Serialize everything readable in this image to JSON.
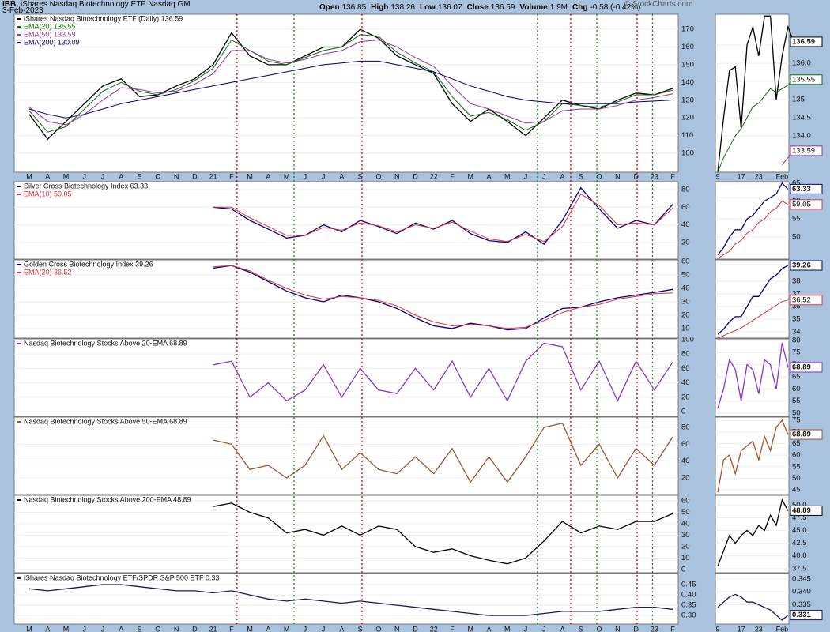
{
  "header": {
    "symbol": "IBB",
    "name": "iShares Nasdaq Biotechnology ETF Nasdaq GM",
    "date": "3-Feb-2023",
    "quote": [
      {
        "label": "Open",
        "value": "136.85"
      },
      {
        "label": "High",
        "value": "138.26"
      },
      {
        "label": "Low",
        "value": "136.07"
      },
      {
        "label": "Close",
        "value": "136.59"
      },
      {
        "label": "Volume",
        "value": "1.9M"
      },
      {
        "label": "Chg",
        "value": "-0.58 (-0.42%)"
      }
    ],
    "credit": "© StockCharts.com"
  },
  "signals": [
    {
      "x": 11.3,
      "color": "#e00000"
    },
    {
      "x": 18.1,
      "color": "#e00000"
    },
    {
      "x": 29.45,
      "color": "#e00000"
    },
    {
      "x": 33.06,
      "color": "#e00000"
    },
    {
      "x": 14.4,
      "color": "#1a8a1a"
    },
    {
      "x": 27.64,
      "color": "#1a8a1a"
    },
    {
      "x": 30.87,
      "color": "#1a8a1a"
    },
    {
      "x": 33.9,
      "color": "#1a8a1a"
    }
  ],
  "chart_data": [
    {
      "type": "line",
      "categories": [
        "M",
        "A",
        "M",
        "J",
        "J",
        "A",
        "S",
        "O",
        "N",
        "D",
        "21",
        "F",
        "M",
        "A",
        "M",
        "J",
        "J",
        "A",
        "S",
        "O",
        "N",
        "D",
        "22",
        "F",
        "M",
        "A",
        "M",
        "J",
        "J",
        "A",
        "S",
        "O",
        "N",
        "D",
        "23",
        "F"
      ],
      "ylim": [
        89.3,
        178.5
      ],
      "yticks": [
        100,
        110,
        120,
        130,
        140,
        150,
        160,
        170
      ],
      "series": [
        {
          "name": "iShares Nasdaq Biotechnology ETF (Daily) 136.59",
          "color": "#000000",
          "values": [
            122,
            108,
            118,
            128,
            138,
            142,
            132,
            133,
            138,
            142,
            150,
            168,
            155,
            150,
            150,
            155,
            160,
            160,
            170,
            165,
            155,
            150,
            145,
            128,
            118,
            125,
            118,
            110,
            120,
            130,
            127,
            125,
            130,
            134,
            133,
            136.6
          ]
        },
        {
          "name": "EMA(20) 135.55",
          "color": "#0a6b0a",
          "values": [
            124,
            112,
            115,
            125,
            135,
            140,
            135,
            133,
            136,
            141,
            148,
            164,
            158,
            152,
            150,
            154,
            158,
            160,
            167,
            166,
            157,
            151,
            146,
            132,
            121,
            123,
            119,
            113,
            118,
            128,
            127,
            126,
            129,
            133,
            133,
            135.6
          ]
        },
        {
          "name": "EMA(50) 133.59",
          "color": "#993399",
          "values": [
            126,
            118,
            116,
            122,
            130,
            137,
            136,
            134,
            135,
            139,
            145,
            158,
            158,
            153,
            151,
            153,
            156,
            158,
            163,
            164,
            160,
            154,
            149,
            138,
            128,
            125,
            121,
            117,
            118,
            124,
            125,
            125,
            127,
            130,
            131.5,
            133.6
          ]
        },
        {
          "name": "EMA(200) 130.09",
          "color": "#000066",
          "values": [
            125,
            122,
            120,
            122,
            125,
            128,
            130,
            132,
            134,
            136,
            138,
            140,
            142,
            144,
            146,
            148,
            150,
            151,
            152,
            152,
            150,
            148,
            146,
            142,
            138,
            135,
            132,
            130,
            129,
            128,
            128,
            128,
            128,
            129,
            129.5,
            130.1
          ]
        }
      ],
      "inset": {
        "categories": [
          "9",
          null,
          null,
          null,
          "17",
          null,
          null,
          "23",
          null,
          null,
          null,
          "Feb",
          null,
          null
        ],
        "ylim": [
          133.0,
          137.35
        ],
        "yticks": [
          {
            "value": 134,
            "label": "134.0"
          },
          134.5,
          135,
          135.5,
          {
            "value": 136,
            "label": "136.0"
          },
          136.5
        ],
        "series": [
          {
            "color": "#000000",
            "values": [
              133.0,
              134.5,
              135.8,
              135.9,
              134.2,
              136.5,
              137.0,
              136.2,
              137.3,
              137.3,
              135.0,
              136.2,
              137.0,
              136.59
            ]
          },
          {
            "color": "#0a6b0a",
            "values": [
              133.0,
              133.4,
              133.7,
              134.0,
              134.2,
              134.5,
              134.8,
              134.9,
              135.1,
              135.3,
              135.2,
              135.3,
              135.4,
              135.55
            ]
          },
          {
            "color": "#993399",
            "values": [
              null,
              null,
              null,
              null,
              null,
              null,
              null,
              null,
              null,
              null,
              null,
              133.2,
              133.4,
              133.59
            ]
          }
        ]
      }
    },
    {
      "type": "line",
      "ylim": [
        1,
        89
      ],
      "yticks": [
        20,
        40,
        60,
        80
      ],
      "series": [
        {
          "name": "Silver Cross Biotechnology Index 63.33",
          "color": "#000080",
          "values": [
            null,
            null,
            null,
            null,
            null,
            null,
            null,
            null,
            null,
            null,
            60,
            58,
            45,
            35,
            25,
            28,
            40,
            32,
            45,
            38,
            30,
            42,
            35,
            45,
            30,
            22,
            20,
            32,
            18,
            45,
            82,
            58,
            36,
            45,
            40,
            63.33
          ]
        },
        {
          "name": "EMA(10) 59.05",
          "color": "#e0303a",
          "values": [
            null,
            null,
            null,
            null,
            null,
            null,
            null,
            null,
            null,
            null,
            60,
            60,
            48,
            38,
            28,
            28,
            37,
            34,
            42,
            39,
            32,
            40,
            36,
            43,
            33,
            24,
            21,
            29,
            21,
            38,
            75,
            62,
            40,
            42,
            40,
            59.05
          ]
        }
      ],
      "inset": {
        "ylim": [
          43.8,
          65.4
        ],
        "yticks": [
          50,
          55,
          60,
          65
        ],
        "series": [
          {
            "color": "#000080",
            "values": [
              45,
              47,
              50,
              52,
              52,
              55,
              56,
              58,
              60,
              61,
              62,
              65,
              63.33
            ]
          },
          {
            "color": "#e0303a",
            "values": [
              44,
              45,
              46,
              48,
              49,
              51,
              52,
              54,
              55,
              57,
              58,
              60,
              59.05
            ]
          }
        ]
      }
    },
    {
      "type": "line",
      "ylim": [
        2.9,
        61.2
      ],
      "yticks": [
        10,
        20,
        30,
        40,
        50,
        60
      ],
      "series": [
        {
          "name": "Golden Cross Biotechnology Index 39.26",
          "color": "#000080",
          "values": [
            null,
            null,
            null,
            null,
            null,
            null,
            null,
            null,
            null,
            null,
            55,
            57,
            52,
            45,
            38,
            33,
            30,
            35,
            33,
            30,
            25,
            18,
            12,
            10,
            14,
            12,
            9,
            10,
            18,
            25,
            26,
            30,
            33,
            35,
            37,
            39.26
          ]
        },
        {
          "name": "EMA(20) 36.52",
          "color": "#e0303a",
          "values": [
            null,
            null,
            null,
            null,
            null,
            null,
            null,
            null,
            null,
            null,
            56,
            57,
            53,
            46,
            40,
            35,
            32,
            34,
            33,
            31,
            27,
            20,
            15,
            12,
            13,
            12,
            10,
            11,
            16,
            22,
            26,
            28,
            32,
            34,
            36,
            36.52
          ]
        }
      ],
      "inset": {
        "ylim": [
          33.5,
          39.7
        ],
        "yticks": [
          34,
          35,
          36,
          37,
          38
        ],
        "series": [
          {
            "color": "#000080",
            "values": [
              33.8,
              34.2,
              34.8,
              35.2,
              35.2,
              36.0,
              36.8,
              36.8,
              37.5,
              38.2,
              38.5,
              39.0,
              39.26
            ]
          },
          {
            "color": "#e0303a",
            "values": [
              33.5,
              33.7,
              33.9,
              34.1,
              34.3,
              34.6,
              34.9,
              35.2,
              35.5,
              35.8,
              36.1,
              36.4,
              36.52
            ]
          }
        ]
      }
    },
    {
      "type": "line",
      "ylim": [
        -6.6,
        101
      ],
      "yticks": [
        0,
        20,
        40,
        60,
        80,
        100
      ],
      "series": [
        {
          "name": "Nasdaq Biotechnology Stocks Above 20-EMA 68.89",
          "color": "#8833cc",
          "values": [
            null,
            null,
            null,
            null,
            null,
            null,
            null,
            null,
            null,
            null,
            65,
            70,
            20,
            40,
            15,
            30,
            65,
            20,
            60,
            30,
            25,
            60,
            30,
            70,
            20,
            60,
            15,
            70,
            95,
            90,
            30,
            70,
            15,
            70,
            30,
            68.89
          ]
        }
      ],
      "inset": {
        "ylim": [
          48.7,
          80.6
        ],
        "yticks": [
          50,
          55,
          60,
          65,
          70,
          75,
          80
        ],
        "series": [
          {
            "color": "#8833cc",
            "values": [
              52,
              60,
              72,
              68,
              55,
              70,
              68,
              58,
              72,
              70,
              60,
              79,
              68.89
            ]
          }
        ]
      }
    },
    {
      "type": "line",
      "ylim": [
        0.3,
        92.2
      ],
      "yticks": [
        20,
        40,
        60,
        80
      ],
      "series": [
        {
          "name": "Nasdaq Biotechnology Stocks Above 50-EMA 68.89",
          "color": "#a0522d",
          "values": [
            null,
            null,
            null,
            null,
            null,
            null,
            null,
            null,
            null,
            null,
            65,
            60,
            30,
            35,
            20,
            35,
            70,
            30,
            50,
            30,
            25,
            45,
            25,
            55,
            15,
            45,
            15,
            45,
            80,
            85,
            35,
            60,
            20,
            55,
            35,
            68.89
          ]
        }
      ],
      "inset": {
        "ylim": [
          43,
          76.4
        ],
        "yticks": [
          45,
          50,
          55,
          60,
          65,
          70,
          75
        ],
        "series": [
          {
            "color": "#a0522d",
            "values": [
              44,
              58,
              60,
              52,
              62,
              64,
              66,
              58,
              68,
              62,
              72,
              75,
              68.89
            ]
          }
        ]
      }
    },
    {
      "type": "line",
      "ylim": [
        -2.8,
        64.8
      ],
      "yticks": [
        0,
        10,
        20,
        30,
        40,
        50,
        60
      ],
      "series": [
        {
          "name": "Nasdaq Biotechnology Stocks Above 200-EMA 48.89",
          "color": "#000000",
          "values": [
            null,
            null,
            null,
            null,
            null,
            null,
            null,
            null,
            null,
            null,
            55,
            58,
            50,
            45,
            32,
            35,
            30,
            38,
            30,
            38,
            35,
            20,
            15,
            18,
            12,
            8,
            5,
            10,
            25,
            42,
            32,
            38,
            35,
            42,
            42,
            48.89
          ]
        }
      ],
      "inset": {
        "ylim": [
          36.7,
          51.9
        ],
        "yticks": [
          37.5,
          {
            "value": 40,
            "label": "40.0"
          },
          42.5,
          {
            "value": 45,
            "label": "45.0"
          },
          47.5,
          {
            "value": 50,
            "label": "50.0"
          }
        ],
        "series": [
          {
            "color": "#000000",
            "values": [
              38,
              41,
              44,
              42.5,
              44,
              45,
              44,
              46,
              45,
              48,
              46,
              51,
              48.89
            ]
          }
        ]
      }
    },
    {
      "type": "line",
      "categories": [
        "M",
        "A",
        "M",
        "J",
        "J",
        "A",
        "S",
        "O",
        "N",
        "D",
        "21",
        "F",
        "M",
        "A",
        "M",
        "J",
        "J",
        "A",
        "S",
        "O",
        "N",
        "D",
        "22",
        "F",
        "M",
        "A",
        "M",
        "J",
        "J",
        "A",
        "S",
        "O",
        "N",
        "D",
        "23",
        "F"
      ],
      "ylim": [
        0.258,
        0.504
      ],
      "yticks": [
        {
          "value": 0.3,
          "label": "0.30"
        },
        0.35,
        {
          "value": 0.4,
          "label": "0.40"
        },
        0.45
      ],
      "series": [
        {
          "name": "iShares Nasdaq Biotechnology ETF/SPDR S&P 500 ETF 0.33",
          "color": "#1a1a4e",
          "values": [
            0.43,
            0.42,
            0.43,
            0.44,
            0.45,
            0.45,
            0.44,
            0.43,
            0.42,
            0.42,
            0.41,
            0.42,
            0.4,
            0.38,
            0.37,
            0.38,
            0.37,
            0.36,
            0.37,
            0.36,
            0.35,
            0.34,
            0.33,
            0.32,
            0.31,
            0.3,
            0.3,
            0.3,
            0.31,
            0.32,
            0.32,
            0.32,
            0.33,
            0.34,
            0.34,
            0.33
          ]
        }
      ],
      "inset": {
        "categories": [
          "9",
          null,
          null,
          null,
          "17",
          null,
          null,
          "23",
          null,
          null,
          null,
          "Feb",
          null
        ],
        "ylim": [
          0.3275,
          0.3471
        ],
        "yticks": [
          0.335,
          {
            "value": 0.34,
            "label": "0.340"
          },
          0.345
        ],
        "series": [
          {
            "color": "#1a1a4e",
            "values": [
              0.334,
              0.336,
              0.338,
              0.339,
              0.338,
              0.336,
              0.336,
              0.335,
              0.334,
              0.333,
              0.331,
              0.329,
              0.331
            ]
          }
        ]
      }
    }
  ]
}
